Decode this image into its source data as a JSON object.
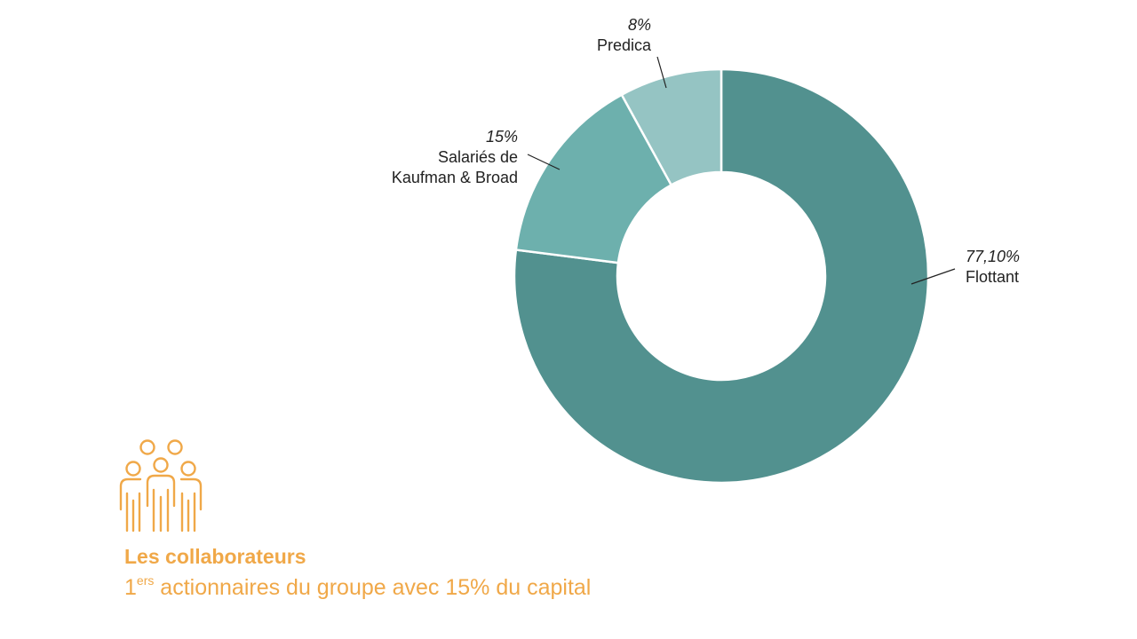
{
  "chart_data": {
    "type": "pie",
    "variant": "donut",
    "slices": [
      {
        "label": "Flottant",
        "percent_label": "77,10%",
        "value": 77.1,
        "color": "#52918f"
      },
      {
        "label": "Salariés de Kaufman & Broad",
        "label_lines": [
          "Salariés de",
          "Kaufman & Broad"
        ],
        "percent_label": "15%",
        "value": 15,
        "color": "#6db0ad"
      },
      {
        "label": "Predica",
        "percent_label": "8%",
        "value": 8,
        "color": "#95c4c3"
      }
    ]
  },
  "caption": {
    "title": "Les collaborateurs",
    "subtitle_prefix": "1",
    "subtitle_sup": "ers",
    "subtitle_rest": " actionnaires du groupe avec 15% du capital"
  },
  "icons": {
    "people": "people-group-icon"
  },
  "colors": {
    "accent": "#f0a848"
  }
}
